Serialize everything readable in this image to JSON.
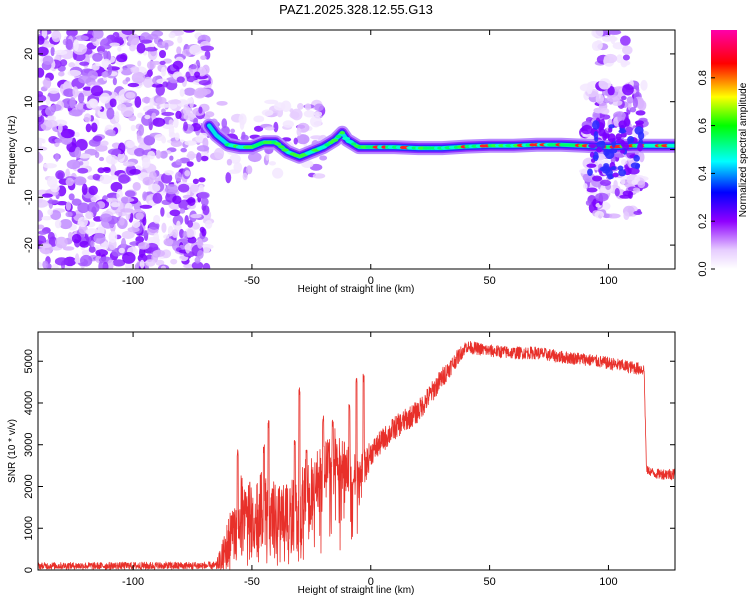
{
  "title": "PAZ1.2025.328.12.55.G13",
  "chart_data": [
    {
      "type": "heatmap",
      "xlabel": "Height of straight line (km)",
      "ylabel": "Frequency (Hz)",
      "xlim": [
        -140,
        128
      ],
      "ylim": [
        -25,
        25
      ],
      "xticks": [
        -100,
        -50,
        0,
        50,
        100
      ],
      "xtick_labels": [
        "-100",
        "-50",
        "0",
        "50",
        "100"
      ],
      "yticks": [
        -20,
        -10,
        0,
        10,
        20
      ],
      "ytick_labels": [
        "-20",
        "-10",
        "0",
        "10",
        "20"
      ],
      "colorbar": {
        "label": "Normalized spectral amplitude",
        "range": [
          0,
          1
        ],
        "ticks": [
          0.0,
          0.2,
          0.4,
          0.6,
          0.8
        ],
        "tick_labels": [
          "0.0",
          "0.2",
          "0.4",
          "0.6",
          "0.8"
        ],
        "colors": [
          "#ffffff",
          "#e6ccff",
          "#8f00ff",
          "#0000ff",
          "#00ffff",
          "#00ff00",
          "#ffff00",
          "#ff0000",
          "#ff00aa"
        ]
      },
      "ridge": {
        "x": [
          -68,
          -65,
          -60,
          -55,
          -50,
          -45,
          -40,
          -35,
          -30,
          -25,
          -20,
          -15,
          -12,
          -10,
          -5,
          0,
          10,
          20,
          30,
          40,
          50,
          60,
          70,
          80,
          90,
          100,
          110,
          120,
          128
        ],
        "y": [
          5,
          3,
          1,
          0.5,
          0.5,
          1.5,
          1.5,
          -0.5,
          -1.5,
          -0.5,
          0.5,
          2,
          3.5,
          2,
          0.5,
          0.5,
          0.5,
          0.3,
          0.3,
          0.6,
          0.8,
          0.8,
          1,
          1,
          0.8,
          0.5,
          0.8,
          0.8,
          0.8
        ]
      }
    },
    {
      "type": "line",
      "xlabel": "Height of straight line (km)",
      "ylabel": "SNR (10 * v/v)",
      "xlim": [
        -140,
        128
      ],
      "ylim": [
        0,
        5700
      ],
      "xticks": [
        -100,
        -50,
        0,
        50,
        100
      ],
      "xtick_labels": [
        "-100",
        "-50",
        "0",
        "50",
        "100"
      ],
      "yticks": [
        0,
        1000,
        2000,
        3000,
        4000,
        5000
      ],
      "ytick_labels": [
        "0",
        "1000",
        "2000",
        "3000",
        "4000",
        "5000"
      ],
      "color": "#e8302a",
      "envelope": {
        "x": [
          -140,
          -100,
          -65,
          -62,
          -58,
          -55,
          -50,
          -45,
          -40,
          -35,
          -30,
          -28,
          -25,
          -20,
          -15,
          -10,
          -5,
          0,
          10,
          20,
          30,
          40,
          50,
          60,
          70,
          80,
          90,
          100,
          110,
          115,
          116,
          120,
          128
        ],
        "y": [
          100,
          100,
          100,
          300,
          900,
          1500,
          1200,
          1500,
          1100,
          1100,
          1300,
          1800,
          1900,
          2400,
          2800,
          2400,
          2100,
          2800,
          3400,
          3800,
          4600,
          5350,
          5250,
          5200,
          5200,
          5100,
          5050,
          4950,
          4850,
          4800,
          2400,
          2300,
          2300
        ]
      },
      "spikes": {
        "x": [
          -56,
          -45,
          -43,
          -32,
          -30,
          -27,
          -20,
          -16,
          -9,
          -6,
          -3
        ],
        "y": [
          2900,
          3000,
          3600,
          3200,
          4400,
          2900,
          3700,
          3600,
          4000,
          4600,
          4700
        ]
      },
      "noise_amplitude": {
        "x": [
          -140,
          -65,
          -60,
          -50,
          -30,
          -20,
          -5,
          0,
          30,
          40,
          114,
          116,
          128
        ],
        "y": [
          80,
          100,
          700,
          900,
          1000,
          600,
          600,
          300,
          250,
          150,
          150,
          100,
          150
        ]
      }
    }
  ]
}
